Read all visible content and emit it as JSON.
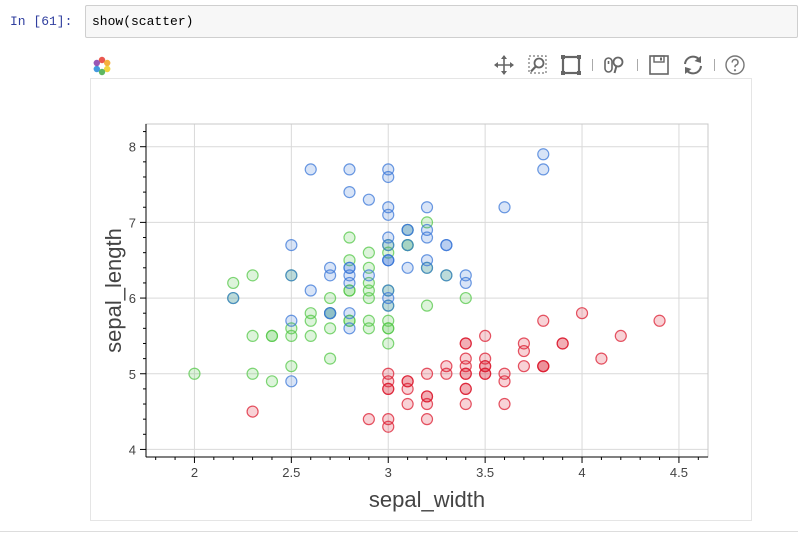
{
  "cell": {
    "prompt": "In [61]:",
    "code": "show(scatter)"
  },
  "toolbar": {
    "tools": [
      "pan-tool",
      "box-zoom-tool",
      "resize-tool",
      "wheel-zoom-tool",
      "save-tool",
      "reset-tool",
      "help-tool"
    ],
    "active": [
      "pan-tool",
      "wheel-zoom-tool"
    ]
  },
  "colors": {
    "prompt": "#303f9f",
    "setosa": "#dc1e32",
    "versicolor": "#55c84a",
    "virginica": "#3c78d8"
  },
  "chart_data": {
    "type": "scatter",
    "title": "",
    "xlabel": "sepal_width",
    "ylabel": "sepal_length",
    "xlim": [
      1.75,
      4.65
    ],
    "ylim": [
      3.9,
      8.3
    ],
    "xticks": [
      2,
      2.5,
      3,
      3.5,
      4,
      4.5
    ],
    "yticks": [
      4,
      5,
      6,
      7,
      8
    ],
    "grid": true,
    "legend": "none",
    "series": [
      {
        "color": "#dc1e32",
        "points": [
          [
            3.5,
            5.1
          ],
          [
            3.0,
            4.9
          ],
          [
            3.2,
            4.7
          ],
          [
            3.1,
            4.6
          ],
          [
            3.6,
            5.0
          ],
          [
            3.9,
            5.4
          ],
          [
            3.4,
            4.6
          ],
          [
            3.4,
            5.0
          ],
          [
            2.9,
            4.4
          ],
          [
            3.1,
            4.9
          ],
          [
            3.7,
            5.4
          ],
          [
            3.4,
            4.8
          ],
          [
            3.0,
            4.8
          ],
          [
            3.0,
            4.3
          ],
          [
            4.0,
            5.8
          ],
          [
            4.4,
            5.7
          ],
          [
            3.9,
            5.4
          ],
          [
            3.5,
            5.1
          ],
          [
            3.8,
            5.7
          ],
          [
            3.8,
            5.1
          ],
          [
            3.4,
            5.4
          ],
          [
            3.7,
            5.1
          ],
          [
            3.6,
            4.6
          ],
          [
            3.3,
            5.1
          ],
          [
            3.4,
            4.8
          ],
          [
            3.0,
            5.0
          ],
          [
            3.4,
            5.0
          ],
          [
            3.5,
            5.2
          ],
          [
            3.4,
            5.2
          ],
          [
            3.2,
            4.7
          ],
          [
            3.1,
            4.8
          ],
          [
            3.4,
            5.4
          ],
          [
            4.1,
            5.2
          ],
          [
            4.2,
            5.5
          ],
          [
            3.1,
            4.9
          ],
          [
            3.2,
            5.0
          ],
          [
            3.5,
            5.5
          ],
          [
            3.6,
            4.9
          ],
          [
            3.0,
            4.4
          ],
          [
            3.4,
            5.1
          ],
          [
            3.5,
            5.0
          ],
          [
            2.3,
            4.5
          ],
          [
            3.2,
            4.4
          ],
          [
            3.5,
            5.0
          ],
          [
            3.8,
            5.1
          ],
          [
            3.0,
            4.8
          ],
          [
            3.8,
            5.1
          ],
          [
            3.2,
            4.6
          ],
          [
            3.7,
            5.3
          ],
          [
            3.3,
            5.0
          ]
        ]
      },
      {
        "color": "#55c84a",
        "points": [
          [
            3.2,
            7.0
          ],
          [
            3.2,
            6.4
          ],
          [
            3.1,
            6.9
          ],
          [
            2.3,
            5.5
          ],
          [
            2.8,
            6.5
          ],
          [
            2.8,
            5.7
          ],
          [
            3.3,
            6.3
          ],
          [
            2.4,
            4.9
          ],
          [
            2.9,
            6.6
          ],
          [
            2.7,
            5.2
          ],
          [
            2.0,
            5.0
          ],
          [
            3.0,
            5.9
          ],
          [
            2.2,
            6.0
          ],
          [
            2.9,
            6.1
          ],
          [
            2.9,
            5.6
          ],
          [
            3.1,
            6.7
          ],
          [
            3.0,
            5.6
          ],
          [
            2.7,
            5.8
          ],
          [
            2.2,
            6.2
          ],
          [
            2.5,
            5.6
          ],
          [
            3.2,
            5.9
          ],
          [
            2.8,
            6.1
          ],
          [
            2.5,
            6.3
          ],
          [
            2.8,
            6.1
          ],
          [
            2.9,
            6.4
          ],
          [
            3.0,
            6.6
          ],
          [
            2.8,
            6.8
          ],
          [
            3.0,
            6.7
          ],
          [
            2.9,
            6.0
          ],
          [
            2.6,
            5.7
          ],
          [
            2.4,
            5.5
          ],
          [
            2.4,
            5.5
          ],
          [
            2.7,
            5.8
          ],
          [
            2.7,
            6.0
          ],
          [
            3.0,
            5.4
          ],
          [
            3.4,
            6.0
          ],
          [
            3.1,
            6.7
          ],
          [
            2.3,
            6.3
          ],
          [
            3.0,
            5.6
          ],
          [
            2.5,
            5.5
          ],
          [
            2.6,
            5.5
          ],
          [
            3.0,
            6.1
          ],
          [
            2.6,
            5.8
          ],
          [
            2.3,
            5.0
          ],
          [
            2.7,
            5.6
          ],
          [
            3.0,
            5.7
          ],
          [
            2.9,
            5.7
          ],
          [
            2.9,
            6.2
          ],
          [
            2.5,
            5.1
          ],
          [
            2.8,
            5.7
          ]
        ]
      },
      {
        "color": "#3c78d8",
        "points": [
          [
            3.3,
            6.3
          ],
          [
            2.7,
            5.8
          ],
          [
            3.0,
            7.1
          ],
          [
            2.9,
            6.3
          ],
          [
            3.0,
            6.5
          ],
          [
            3.0,
            7.6
          ],
          [
            2.5,
            4.9
          ],
          [
            2.9,
            7.3
          ],
          [
            2.5,
            6.7
          ],
          [
            3.6,
            7.2
          ],
          [
            3.2,
            6.5
          ],
          [
            2.7,
            6.4
          ],
          [
            3.0,
            6.8
          ],
          [
            2.5,
            5.7
          ],
          [
            2.8,
            5.8
          ],
          [
            3.2,
            6.4
          ],
          [
            3.0,
            6.5
          ],
          [
            3.8,
            7.7
          ],
          [
            2.6,
            7.7
          ],
          [
            2.2,
            6.0
          ],
          [
            3.2,
            6.9
          ],
          [
            2.8,
            5.6
          ],
          [
            2.8,
            7.7
          ],
          [
            2.7,
            6.3
          ],
          [
            3.3,
            6.7
          ],
          [
            3.2,
            7.2
          ],
          [
            2.8,
            6.2
          ],
          [
            3.0,
            6.1
          ],
          [
            2.8,
            6.4
          ],
          [
            3.0,
            7.2
          ],
          [
            2.8,
            7.4
          ],
          [
            3.8,
            7.9
          ],
          [
            2.8,
            6.4
          ],
          [
            2.8,
            6.3
          ],
          [
            2.6,
            6.1
          ],
          [
            3.0,
            7.7
          ],
          [
            3.4,
            6.3
          ],
          [
            3.1,
            6.4
          ],
          [
            3.0,
            6.0
          ],
          [
            3.1,
            6.9
          ],
          [
            3.1,
            6.7
          ],
          [
            3.1,
            6.9
          ],
          [
            2.7,
            5.8
          ],
          [
            3.2,
            6.8
          ],
          [
            3.3,
            6.7
          ],
          [
            3.0,
            6.7
          ],
          [
            2.5,
            6.3
          ],
          [
            3.0,
            6.5
          ],
          [
            3.4,
            6.2
          ],
          [
            3.0,
            5.9
          ]
        ]
      }
    ]
  }
}
